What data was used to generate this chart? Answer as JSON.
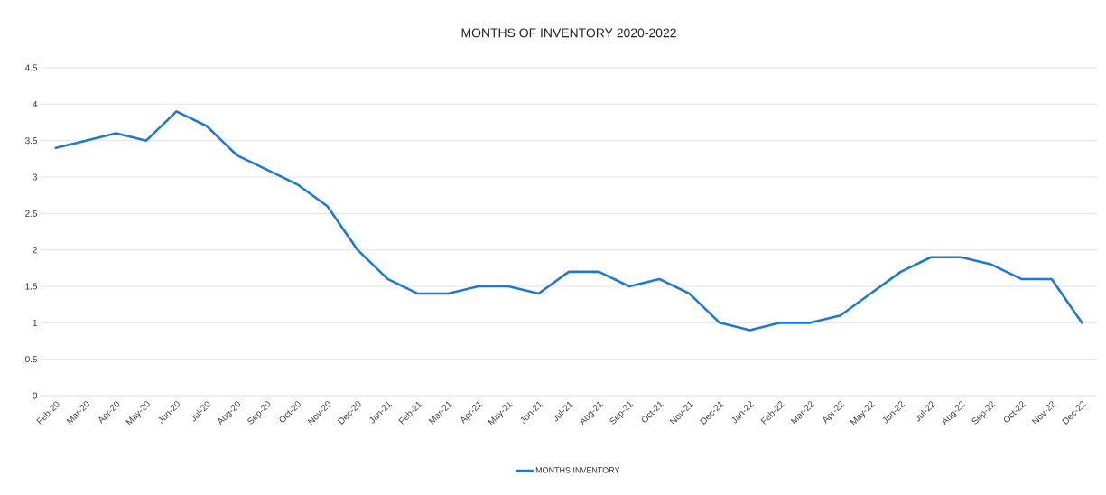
{
  "chart_data": {
    "type": "line",
    "title": "MONTHS OF INVENTORY 2020-2022",
    "categories": [
      "Feb-20",
      "Mar-20",
      "Apr-20",
      "May-20",
      "Jun-20",
      "Jul-20",
      "Aug-20",
      "Sep-20",
      "Oct-20",
      "Nov-20",
      "Dec-20",
      "Jan-21",
      "Feb-21",
      "Mar-21",
      "Apr-21",
      "May-21",
      "Jun-21",
      "Jul-21",
      "Aug-21",
      "Sep-21",
      "Oct-21",
      "Nov-21",
      "Dec-21",
      "Jan-22",
      "Feb-22",
      "Mar-22",
      "Apr-22",
      "May-22",
      "Jun-22",
      "Jul-22",
      "Aug-22",
      "Sep-22",
      "Oct-22",
      "Nov-22",
      "Dec-22"
    ],
    "series": [
      {
        "name": "MONTHS INVENTORY",
        "color": "#1f78d1",
        "values": [
          3.4,
          3.5,
          3.6,
          3.5,
          3.9,
          3.7,
          3.3,
          3.1,
          2.9,
          2.6,
          2.0,
          1.6,
          1.4,
          1.4,
          1.5,
          1.5,
          1.4,
          1.7,
          1.7,
          1.5,
          1.6,
          1.4,
          1.0,
          0.9,
          1.0,
          1.0,
          1.1,
          1.4,
          1.7,
          1.9,
          1.9,
          1.8,
          1.6,
          1.6,
          1.0
        ]
      }
    ],
    "ylim": [
      0,
      4.5
    ],
    "yticks": [
      0,
      0.5,
      1,
      1.5,
      2,
      2.5,
      3,
      3.5,
      4,
      4.5
    ],
    "grid": "y",
    "legend": "bottom",
    "marker": "none",
    "line_style": "solid"
  }
}
